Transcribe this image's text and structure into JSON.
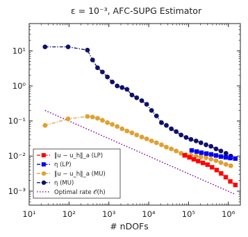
{
  "chart_data": {
    "type": "line",
    "title": "ε = 10⁻³, AFC-SUPG Estimator",
    "xlabel": "# nDOFs",
    "ylabel": "",
    "xscale": "log",
    "yscale": "log",
    "xlim": [
      10,
      2000000
    ],
    "ylim": [
      0.0004,
      60
    ],
    "grid": false,
    "legend_position": "bottom-left",
    "x_ticks": [
      {
        "value": 10,
        "label": "10¹"
      },
      {
        "value": 100,
        "label": "10²"
      },
      {
        "value": 1000,
        "label": "10³"
      },
      {
        "value": 10000,
        "label": "10⁴"
      },
      {
        "value": 100000,
        "label": "10⁵"
      },
      {
        "value": 1000000,
        "label": "10⁶"
      }
    ],
    "y_ticks": [
      {
        "value": 0.001,
        "label": "10⁻³"
      },
      {
        "value": 0.01,
        "label": "10⁻²"
      },
      {
        "value": 0.1,
        "label": "10⁻¹"
      },
      {
        "value": 1,
        "label": "10⁰"
      },
      {
        "value": 10,
        "label": "10¹"
      }
    ],
    "series": [
      {
        "name": "‖u − u_h‖_a (LP)",
        "color": "#ff0000",
        "marker": "square",
        "line": "dashdot",
        "x": [
          80000,
          105000,
          135000,
          175000,
          230000,
          300000,
          390000,
          510000,
          660000,
          860000,
          1120000,
          1500000
        ],
        "y": [
          0.0105,
          0.0092,
          0.0081,
          0.0072,
          0.0064,
          0.0057,
          0.0048,
          0.004,
          0.0032,
          0.0025,
          0.0019,
          0.0015
        ]
      },
      {
        "name": "η (LP)",
        "color": "#0000ee",
        "marker": "square",
        "line": "dashdot",
        "x": [
          120000,
          160000,
          210000,
          280000,
          370000,
          490000,
          650000,
          860000,
          1120000,
          1500000
        ],
        "y": [
          0.0145,
          0.0135,
          0.0125,
          0.0118,
          0.0112,
          0.0104,
          0.0097,
          0.0092,
          0.0088,
          0.0085
        ]
      },
      {
        "name": "‖u − u_h‖_a (MU)",
        "color": "#e0a030",
        "marker": "circle",
        "line": "dashdot",
        "x": [
          25,
          95,
          290,
          390,
          520,
          690,
          920,
          1220,
          1620,
          2150,
          2850,
          3800,
          5000,
          6700,
          8900,
          11800,
          15700,
          20900,
          27800,
          37000,
          49000,
          65000,
          87000,
          115000,
          155000,
          205000,
          275000,
          365000,
          490000,
          650000,
          870000,
          1150000
        ],
        "y": [
          0.075,
          0.115,
          0.135,
          0.13,
          0.12,
          0.105,
          0.09,
          0.08,
          0.07,
          0.06,
          0.052,
          0.046,
          0.04,
          0.035,
          0.031,
          0.027,
          0.024,
          0.021,
          0.018,
          0.016,
          0.014,
          0.012,
          0.011,
          0.0105,
          0.01,
          0.0095,
          0.009,
          0.0082,
          0.0074,
          0.0065,
          0.0058,
          0.0053
        ]
      },
      {
        "name": "η (MU)",
        "color": "#10106a",
        "marker": "circle",
        "line": "dashdot",
        "x": [
          25,
          95,
          290,
          390,
          520,
          690,
          920,
          1220,
          1620,
          2150,
          2850,
          3800,
          5000,
          6700,
          8900,
          11800,
          15700,
          20900,
          27800,
          37000,
          49000,
          65000,
          87000,
          115000,
          155000,
          205000,
          275000,
          365000,
          490000,
          650000,
          870000,
          1150000
        ],
        "y": [
          13,
          13,
          10.5,
          5.5,
          3.3,
          2.5,
          1.8,
          1.3,
          1.0,
          0.9,
          0.8,
          0.55,
          0.46,
          0.38,
          0.3,
          0.2,
          0.14,
          0.09,
          0.075,
          0.06,
          0.05,
          0.04,
          0.034,
          0.03,
          0.027,
          0.024,
          0.021,
          0.019,
          0.016,
          0.014,
          0.012,
          0.01
        ]
      },
      {
        "name": "Optimal rate 𝒪(h)",
        "color": "#8000a0",
        "marker": "none",
        "line": "dotted",
        "x": [
          25,
          1500000
        ],
        "y": [
          0.2,
          0.00081
        ]
      }
    ]
  }
}
